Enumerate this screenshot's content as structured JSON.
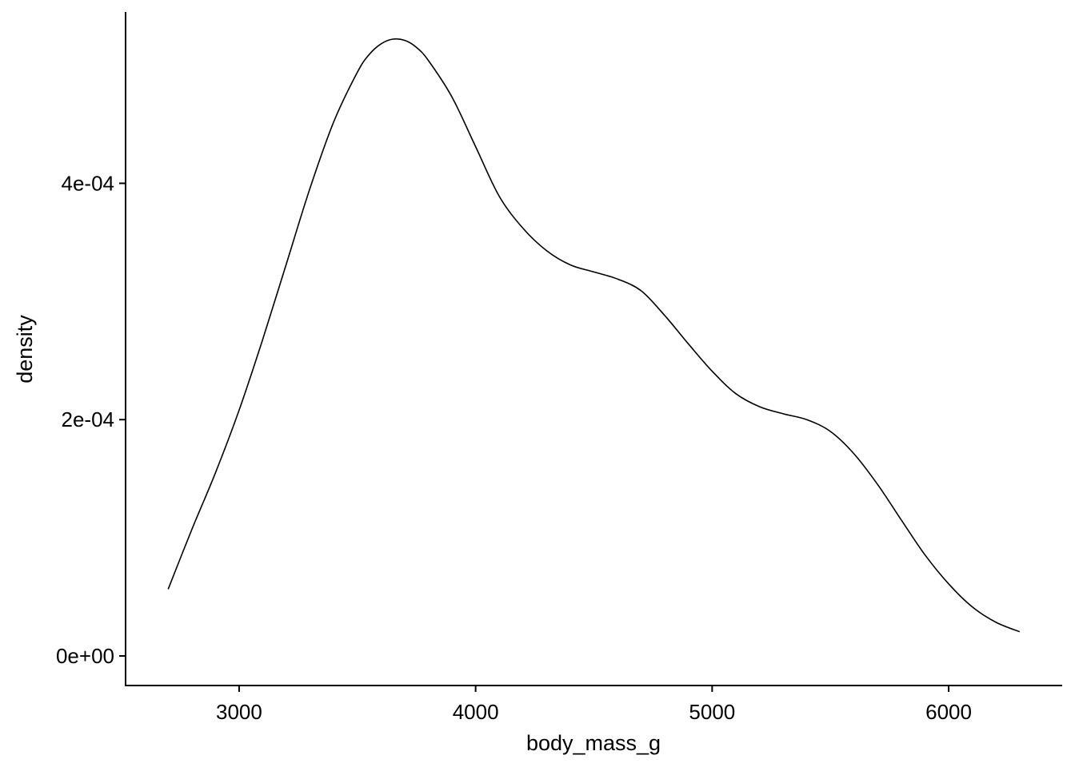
{
  "chart_data": {
    "type": "line",
    "title": "",
    "xlabel": "body_mass_g",
    "ylabel": "density",
    "xlim": [
      2520,
      6480
    ],
    "ylim": [
      -2.5e-05,
      0.000545
    ],
    "grid": false,
    "x_ticks": [
      3000,
      4000,
      5000,
      6000
    ],
    "x_tick_labels": [
      "3000",
      "4000",
      "5000",
      "6000"
    ],
    "y_ticks": [
      0,
      0.0002,
      0.0004
    ],
    "y_tick_labels": [
      "0e+00",
      "2e-04",
      "4e-04"
    ],
    "series": [
      {
        "x": [
          2700,
          2800,
          2900,
          3000,
          3100,
          3200,
          3300,
          3400,
          3500,
          3550,
          3600,
          3650,
          3700,
          3750,
          3800,
          3900,
          4000,
          4100,
          4200,
          4300,
          4400,
          4500,
          4600,
          4700,
          4800,
          4900,
          5000,
          5100,
          5200,
          5300,
          5400,
          5500,
          5600,
          5700,
          5800,
          5900,
          6000,
          6100,
          6200,
          6300
        ],
        "y": [
          5.65e-05,
          0.000107,
          0.000155,
          0.000208,
          0.000268,
          0.000332,
          0.000396,
          0.000452,
          0.000494,
          0.000509,
          0.000518,
          0.000522,
          0.000521,
          0.000515,
          0.000504,
          0.000473,
          0.000431,
          0.000389,
          0.000362,
          0.000343,
          0.000331,
          0.000325,
          0.000319,
          0.000309,
          0.000288,
          0.000264,
          0.000241,
          0.000222,
          0.000211,
          0.000205,
          0.0002,
          0.00019,
          0.000171,
          0.000145,
          0.000115,
          8.55e-05,
          6.1e-05,
          4.15e-05,
          2.85e-05,
          2.05e-05
        ]
      }
    ]
  }
}
